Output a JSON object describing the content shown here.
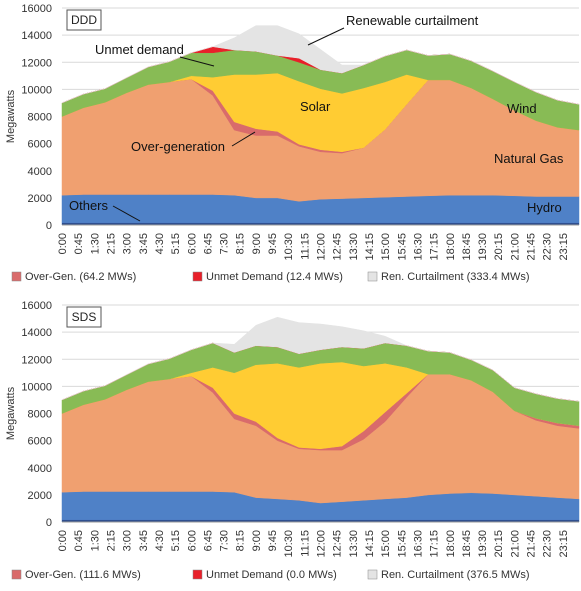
{
  "colors": {
    "hydro": "#4f81c7",
    "others": "#2f4f8f",
    "natural_gas": "#f0a070",
    "solar": "#ffcc33",
    "wind": "#88bb55",
    "curtailment": "#e4e4e4",
    "over_gen": "#d96b6b",
    "unmet": "#e8202a",
    "grid": "#d9d9d9",
    "axis_text": "#333333"
  },
  "chart_data": [
    {
      "type": "area",
      "title": "DDD",
      "ylabel": "Megawatts",
      "ylim": [
        0,
        16000
      ],
      "yticks": [
        0,
        2000,
        4000,
        6000,
        8000,
        10000,
        12000,
        14000,
        16000
      ],
      "grid": true,
      "x_ticks": [
        "0:00",
        "0:45",
        "1:30",
        "2:15",
        "3:00",
        "3:45",
        "4:30",
        "5:15",
        "6:00",
        "6:45",
        "7:30",
        "8:15",
        "9:00",
        "9:45",
        "10:30",
        "11:15",
        "12:00",
        "12:45",
        "13:30",
        "14:15",
        "15:00",
        "15:45",
        "16:30",
        "17:15",
        "18:00",
        "18:45",
        "19:30",
        "20:15",
        "21:00",
        "21:45",
        "22:30",
        "23:15"
      ],
      "x_hours": [
        0,
        1,
        2,
        3,
        4,
        5,
        6,
        7,
        8,
        9,
        10,
        11,
        12,
        13,
        14,
        15,
        16,
        17,
        18,
        19,
        20,
        21,
        22,
        23,
        24
      ],
      "series": [
        {
          "key": "hydro",
          "name": "Hydro",
          "values": [
            2200,
            2250,
            2250,
            2250,
            2250,
            2250,
            2250,
            2250,
            2200,
            2000,
            2000,
            1750,
            1900,
            1950,
            2000,
            2050,
            2100,
            2150,
            2200,
            2200,
            2200,
            2150,
            2100,
            2100,
            2100
          ]
        },
        {
          "key": "natural_gas",
          "name": "Natural Gas",
          "values": [
            5800,
            6400,
            6800,
            7500,
            8100,
            8300,
            8500,
            7300,
            4800,
            4600,
            4600,
            4050,
            3500,
            3350,
            3700,
            5000,
            6800,
            8550,
            8500,
            7900,
            7100,
            6300,
            5600,
            5100,
            4900
          ]
        },
        {
          "key": "over_gen",
          "values": [
            0,
            0,
            0,
            0,
            0,
            0,
            0,
            350,
            600,
            500,
            300,
            150,
            150,
            100,
            0,
            0,
            0,
            0,
            0,
            0,
            0,
            0,
            0,
            0,
            0
          ]
        },
        {
          "key": "solar",
          "name": "Solar",
          "values": [
            0,
            0,
            0,
            0,
            0,
            0,
            250,
            1000,
            3500,
            4000,
            4300,
            4650,
            4500,
            4300,
            4400,
            3500,
            2200,
            0,
            0,
            0,
            0,
            0,
            0,
            0,
            0
          ]
        },
        {
          "key": "wind",
          "name": "Wind",
          "values": [
            1000,
            1000,
            1000,
            1100,
            1300,
            1500,
            1700,
            1800,
            1800,
            1700,
            1300,
            1400,
            1400,
            1500,
            1700,
            1900,
            1800,
            1800,
            1900,
            2000,
            2050,
            2100,
            2100,
            2000,
            1900
          ]
        },
        {
          "key": "unmet",
          "values": [
            0,
            0,
            0,
            0,
            0,
            0,
            0,
            450,
            0,
            0,
            0,
            300,
            0,
            0,
            0,
            0,
            0,
            0,
            0,
            0,
            0,
            0,
            0,
            0,
            0
          ]
        },
        {
          "key": "curtailment",
          "values": [
            0,
            0,
            0,
            0,
            0,
            0,
            0,
            0,
            900,
            1900,
            2200,
            1800,
            1500,
            600,
            0,
            0,
            0,
            0,
            0,
            0,
            0,
            0,
            0,
            0,
            0
          ]
        }
      ],
      "labels": {
        "unmet_demand": "Unmet demand",
        "renewable_curtailment": "Renewable curtailment",
        "solar": "Solar",
        "wind": "Wind",
        "over_generation": "Over-generation",
        "natural_gas": "Natural Gas",
        "others": "Others",
        "hydro": "Hydro"
      },
      "legend": [
        {
          "key": "over_gen",
          "label": "Over-Gen. (64.2 MWs)"
        },
        {
          "key": "unmet",
          "label": "Unmet Demand (12.4 MWs)"
        },
        {
          "key": "curtailment",
          "label": "Ren. Curtailment (333.4 MWs)"
        }
      ]
    },
    {
      "type": "area",
      "title": "SDS",
      "ylabel": "Megawatts",
      "ylim": [
        0,
        16000
      ],
      "yticks": [
        0,
        2000,
        4000,
        6000,
        8000,
        10000,
        12000,
        14000,
        16000
      ],
      "grid": true,
      "x_ticks": [
        "0:00",
        "0:45",
        "1:30",
        "2:15",
        "3:00",
        "3:45",
        "4:30",
        "5:15",
        "6:00",
        "6:45",
        "7:30",
        "8:15",
        "9:00",
        "9:45",
        "10:30",
        "11:15",
        "12:00",
        "12:45",
        "13:30",
        "14:15",
        "15:00",
        "15:45",
        "16:30",
        "17:15",
        "18:00",
        "18:45",
        "19:30",
        "20:15",
        "21:00",
        "21:45",
        "22:30",
        "23:15"
      ],
      "x_hours": [
        0,
        1,
        2,
        3,
        4,
        5,
        6,
        7,
        8,
        9,
        10,
        11,
        12,
        13,
        14,
        15,
        16,
        17,
        18,
        19,
        20,
        21,
        22,
        23,
        24
      ],
      "series": [
        {
          "key": "hydro",
          "name": "Hydro",
          "values": [
            2200,
            2250,
            2250,
            2250,
            2250,
            2250,
            2250,
            2250,
            2200,
            1800,
            1700,
            1600,
            1400,
            1500,
            1600,
            1700,
            1800,
            2000,
            2100,
            2150,
            2100,
            2000,
            1900,
            1800,
            1700
          ]
        },
        {
          "key": "natural_gas",
          "name": "Natural Gas",
          "values": [
            5800,
            6400,
            6800,
            7500,
            8100,
            8300,
            8500,
            7300,
            5400,
            5300,
            4300,
            3800,
            3900,
            3800,
            4500,
            5700,
            7400,
            8900,
            8800,
            8300,
            7500,
            6200,
            5600,
            5300,
            5200
          ]
        },
        {
          "key": "over_gen",
          "values": [
            0,
            0,
            0,
            0,
            0,
            0,
            0,
            350,
            400,
            300,
            200,
            100,
            100,
            300,
            600,
            700,
            300,
            0,
            0,
            0,
            0,
            0,
            150,
            200,
            200
          ]
        },
        {
          "key": "solar",
          "name": "Solar",
          "values": [
            0,
            0,
            0,
            0,
            0,
            0,
            250,
            1500,
            3000,
            4200,
            5500,
            5900,
            6300,
            6200,
            4800,
            3600,
            1900,
            0,
            0,
            0,
            0,
            0,
            0,
            0,
            0
          ]
        },
        {
          "key": "wind",
          "name": "Wind",
          "values": [
            1000,
            1000,
            1000,
            1100,
            1300,
            1500,
            1700,
            1800,
            1500,
            1400,
            1200,
            1000,
            1000,
            1100,
            1300,
            1500,
            1600,
            1700,
            1600,
            1500,
            1600,
            1700,
            1800,
            1800,
            1800
          ]
        },
        {
          "key": "unmet",
          "values": [
            0,
            0,
            0,
            0,
            0,
            0,
            0,
            0,
            0,
            0,
            0,
            0,
            0,
            0,
            0,
            0,
            0,
            0,
            0,
            0,
            0,
            0,
            0,
            0,
            0
          ]
        },
        {
          "key": "curtailment",
          "values": [
            0,
            0,
            0,
            0,
            0,
            0,
            0,
            0,
            600,
            1500,
            2200,
            2300,
            1900,
            1500,
            1300,
            500,
            0,
            0,
            0,
            0,
            0,
            0,
            0,
            0,
            0
          ]
        }
      ],
      "labels": {},
      "legend": [
        {
          "key": "over_gen",
          "label": "Over-Gen. (111.6 MWs)"
        },
        {
          "key": "unmet",
          "label": "Unmet Demand (0.0 MWs)"
        },
        {
          "key": "curtailment",
          "label": "Ren. Curtailment (376.5 MWs)"
        }
      ]
    }
  ]
}
